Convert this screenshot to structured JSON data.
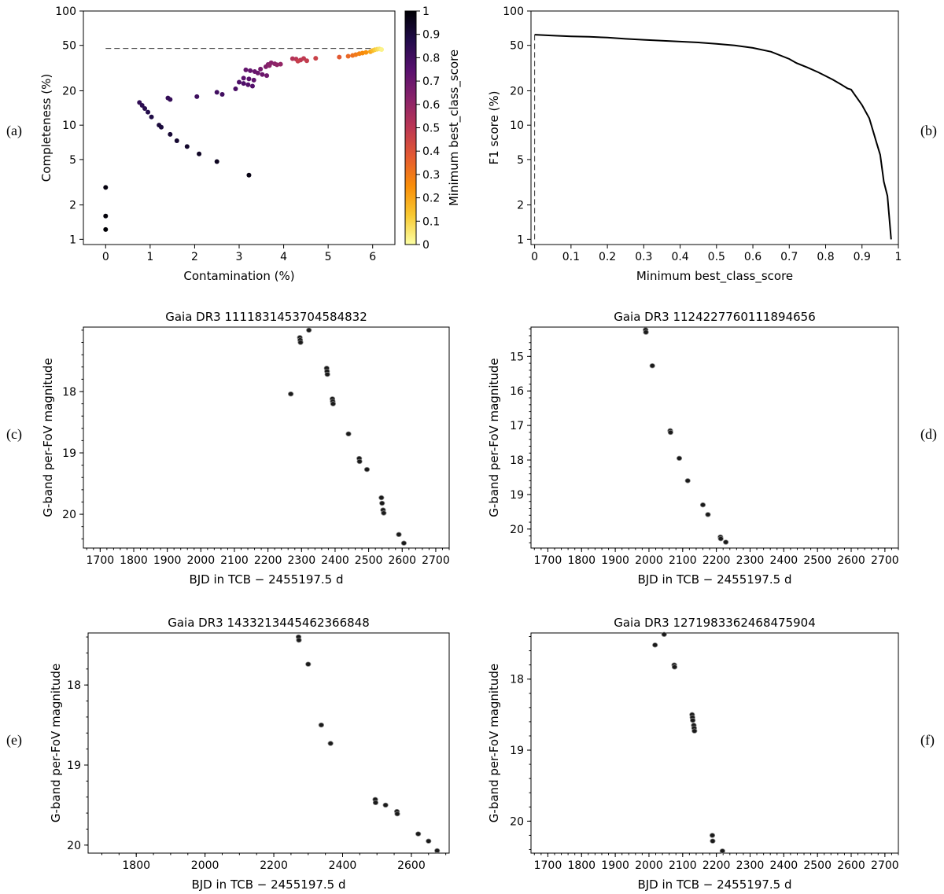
{
  "panel_labels": [
    "(a)",
    "(b)",
    "(c)",
    "(d)",
    "(e)",
    "(f)"
  ],
  "chart_data": [
    {
      "id": "a",
      "type": "scatter",
      "title": "",
      "xlabel": "Contamination (%)",
      "ylabel": "Completeness (%)",
      "yscale": "log",
      "xlim": [
        -0.5,
        6.5
      ],
      "ylim": [
        0.9,
        100
      ],
      "xticks": [
        0,
        1,
        2,
        3,
        4,
        5,
        6
      ],
      "yticks": [
        1,
        2,
        5,
        10,
        20,
        50,
        100
      ],
      "colorbar": {
        "label": "Minimum best_class_score",
        "range": [
          0,
          1
        ],
        "ticks": [
          0,
          0.1,
          0.2,
          0.3,
          0.4,
          0.5,
          0.6,
          0.7,
          0.8,
          0.9,
          1.0
        ],
        "colormap": "inferno_r",
        "colors": [
          "#fcffa4",
          "#f8c932",
          "#f98e09",
          "#e45a31",
          "#bc3754",
          "#89226a",
          "#57106e",
          "#210c4a",
          "#000004"
        ]
      },
      "reference_line": {
        "style": "dashed",
        "y": 47,
        "x_range": [
          0,
          6.2
        ]
      },
      "points": [
        {
          "x": 0,
          "y": 1.22,
          "c": 1.0
        },
        {
          "x": 0,
          "y": 1.6,
          "c": 0.99
        },
        {
          "x": 0,
          "y": 2.85,
          "c": 0.98
        },
        {
          "x": 0.76,
          "y": 15.8,
          "c": 0.84
        },
        {
          "x": 0.82,
          "y": 14.9,
          "c": 0.85
        },
        {
          "x": 0.88,
          "y": 14.0,
          "c": 0.86
        },
        {
          "x": 0.95,
          "y": 13.0,
          "c": 0.87
        },
        {
          "x": 1.03,
          "y": 11.8,
          "c": 0.88
        },
        {
          "x": 1.2,
          "y": 10.0,
          "c": 0.9
        },
        {
          "x": 1.25,
          "y": 9.6,
          "c": 0.9
        },
        {
          "x": 1.45,
          "y": 8.3,
          "c": 0.91
        },
        {
          "x": 1.6,
          "y": 7.3,
          "c": 0.92
        },
        {
          "x": 1.83,
          "y": 6.5,
          "c": 0.93
        },
        {
          "x": 2.1,
          "y": 5.6,
          "c": 0.94
        },
        {
          "x": 2.5,
          "y": 4.8,
          "c": 0.95
        },
        {
          "x": 3.22,
          "y": 3.65,
          "c": 0.97
        },
        {
          "x": 1.4,
          "y": 17.3,
          "c": 0.83
        },
        {
          "x": 1.45,
          "y": 16.8,
          "c": 0.83
        },
        {
          "x": 2.05,
          "y": 17.8,
          "c": 0.81
        },
        {
          "x": 2.5,
          "y": 19.4,
          "c": 0.8
        },
        {
          "x": 2.62,
          "y": 18.6,
          "c": 0.8
        },
        {
          "x": 2.92,
          "y": 20.8,
          "c": 0.78
        },
        {
          "x": 3.0,
          "y": 23.8,
          "c": 0.77
        },
        {
          "x": 3.1,
          "y": 23.2,
          "c": 0.77
        },
        {
          "x": 3.2,
          "y": 22.6,
          "c": 0.76
        },
        {
          "x": 3.3,
          "y": 22.0,
          "c": 0.76
        },
        {
          "x": 3.1,
          "y": 25.8,
          "c": 0.74
        },
        {
          "x": 3.22,
          "y": 25.4,
          "c": 0.74
        },
        {
          "x": 3.33,
          "y": 24.8,
          "c": 0.73
        },
        {
          "x": 3.15,
          "y": 30.5,
          "c": 0.72
        },
        {
          "x": 3.25,
          "y": 30.0,
          "c": 0.72
        },
        {
          "x": 3.35,
          "y": 29.5,
          "c": 0.71
        },
        {
          "x": 3.42,
          "y": 28.6,
          "c": 0.7
        },
        {
          "x": 3.52,
          "y": 27.8,
          "c": 0.7
        },
        {
          "x": 3.62,
          "y": 27.2,
          "c": 0.69
        },
        {
          "x": 3.48,
          "y": 31.0,
          "c": 0.68
        },
        {
          "x": 3.6,
          "y": 32.5,
          "c": 0.65
        },
        {
          "x": 3.65,
          "y": 34.0,
          "c": 0.64
        },
        {
          "x": 3.72,
          "y": 35.2,
          "c": 0.63
        },
        {
          "x": 3.8,
          "y": 34.5,
          "c": 0.62
        },
        {
          "x": 3.85,
          "y": 33.8,
          "c": 0.61
        },
        {
          "x": 3.93,
          "y": 34.2,
          "c": 0.6
        },
        {
          "x": 3.68,
          "y": 33.3,
          "c": 0.62
        },
        {
          "x": 4.2,
          "y": 38.2,
          "c": 0.52
        },
        {
          "x": 4.28,
          "y": 37.9,
          "c": 0.51
        },
        {
          "x": 4.38,
          "y": 37.2,
          "c": 0.5
        },
        {
          "x": 4.45,
          "y": 38.4,
          "c": 0.49
        },
        {
          "x": 4.52,
          "y": 36.7,
          "c": 0.48
        },
        {
          "x": 4.32,
          "y": 36.4,
          "c": 0.47
        },
        {
          "x": 4.72,
          "y": 38.5,
          "c": 0.46
        },
        {
          "x": 5.25,
          "y": 39.5,
          "c": 0.38
        },
        {
          "x": 5.45,
          "y": 40.2,
          "c": 0.34
        },
        {
          "x": 5.55,
          "y": 40.8,
          "c": 0.32
        },
        {
          "x": 5.62,
          "y": 41.5,
          "c": 0.3
        },
        {
          "x": 5.7,
          "y": 42.3,
          "c": 0.28
        },
        {
          "x": 5.77,
          "y": 42.8,
          "c": 0.26
        },
        {
          "x": 5.85,
          "y": 43.4,
          "c": 0.24
        },
        {
          "x": 5.95,
          "y": 44.0,
          "c": 0.2
        },
        {
          "x": 6.0,
          "y": 45.0,
          "c": 0.16
        },
        {
          "x": 6.05,
          "y": 45.8,
          "c": 0.12
        },
        {
          "x": 6.1,
          "y": 46.2,
          "c": 0.09
        },
        {
          "x": 6.15,
          "y": 46.5,
          "c": 0.06
        },
        {
          "x": 6.2,
          "y": 46.0,
          "c": 0.03
        }
      ]
    },
    {
      "id": "b",
      "type": "line",
      "title": "",
      "xlabel": "Minimum best_class_score",
      "ylabel": "F1 score (%)",
      "yscale": "log",
      "xlim": [
        -0.01,
        1.0
      ],
      "ylim": [
        0.9,
        100
      ],
      "xticks": [
        0,
        0.1,
        0.2,
        0.3,
        0.4,
        0.5,
        0.6,
        0.7,
        0.8,
        0.9,
        1.0
      ],
      "yticks": [
        1,
        2,
        5,
        10,
        20,
        50,
        100
      ],
      "reference_line": {
        "style": "dashed",
        "x": 0.0,
        "y_range": [
          1,
          62
        ]
      },
      "x": [
        0,
        0.05,
        0.1,
        0.15,
        0.2,
        0.25,
        0.3,
        0.35,
        0.4,
        0.45,
        0.5,
        0.55,
        0.6,
        0.65,
        0.7,
        0.72,
        0.75,
        0.78,
        0.8,
        0.82,
        0.84,
        0.86,
        0.87,
        0.88,
        0.9,
        0.92,
        0.93,
        0.94,
        0.95,
        0.96,
        0.97,
        0.98
      ],
      "y": [
        62,
        61,
        60,
        59.5,
        58.5,
        57,
        56,
        55,
        54,
        53,
        51.5,
        50,
        47.5,
        44,
        38,
        35,
        32,
        29,
        27,
        25,
        23,
        21,
        20.5,
        18.5,
        15,
        11.5,
        9,
        7,
        5.5,
        3.2,
        2.4,
        1.0
      ]
    },
    {
      "id": "c",
      "type": "scatter",
      "title": "Gaia DR3 1111831453704584832",
      "xlabel": "BJD in TCB − 2455197.5 d",
      "ylabel": "G-band per-FoV magnitude",
      "invert_y": true,
      "xlim": [
        1650,
        2740
      ],
      "ylim": [
        20.55,
        16.95
      ],
      "xticks": [
        1700,
        1800,
        1900,
        2000,
        2100,
        2200,
        2300,
        2400,
        2500,
        2600,
        2700
      ],
      "yticks": [
        18,
        19,
        20
      ],
      "points": [
        {
          "x": 2322,
          "y": 17.0
        },
        {
          "x": 2295,
          "y": 17.12
        },
        {
          "x": 2296,
          "y": 17.16
        },
        {
          "x": 2297,
          "y": 17.2
        },
        {
          "x": 2375,
          "y": 17.62
        },
        {
          "x": 2376,
          "y": 17.67
        },
        {
          "x": 2377,
          "y": 17.72
        },
        {
          "x": 2268,
          "y": 18.04
        },
        {
          "x": 2392,
          "y": 18.12
        },
        {
          "x": 2393,
          "y": 18.16
        },
        {
          "x": 2394,
          "y": 18.2
        },
        {
          "x": 2440,
          "y": 18.69
        },
        {
          "x": 2472,
          "y": 19.09
        },
        {
          "x": 2473,
          "y": 19.14
        },
        {
          "x": 2495,
          "y": 19.27
        },
        {
          "x": 2538,
          "y": 19.73
        },
        {
          "x": 2540,
          "y": 19.82
        },
        {
          "x": 2543,
          "y": 19.93
        },
        {
          "x": 2545,
          "y": 19.98
        },
        {
          "x": 2590,
          "y": 20.33
        },
        {
          "x": 2605,
          "y": 20.47
        }
      ]
    },
    {
      "id": "d",
      "type": "scatter",
      "title": "Gaia DR3 1124227760111894656",
      "xlabel": "BJD in TCB − 2455197.5 d",
      "ylabel": "G-band per-FoV magnitude",
      "invert_y": true,
      "xlim": [
        1650,
        2740
      ],
      "ylim": [
        20.55,
        14.15
      ],
      "xticks": [
        1700,
        1800,
        1900,
        2000,
        2100,
        2200,
        2300,
        2400,
        2500,
        2600,
        2700
      ],
      "yticks": [
        15,
        16,
        17,
        18,
        19,
        20
      ],
      "points": [
        {
          "x": 1990,
          "y": 14.23
        },
        {
          "x": 1991,
          "y": 14.3
        },
        {
          "x": 2010,
          "y": 15.27
        },
        {
          "x": 2063,
          "y": 17.15
        },
        {
          "x": 2064,
          "y": 17.2
        },
        {
          "x": 2090,
          "y": 17.95
        },
        {
          "x": 2115,
          "y": 18.6
        },
        {
          "x": 2160,
          "y": 19.3
        },
        {
          "x": 2175,
          "y": 19.58
        },
        {
          "x": 2212,
          "y": 20.23
        },
        {
          "x": 2213,
          "y": 20.28
        },
        {
          "x": 2228,
          "y": 20.38
        }
      ]
    },
    {
      "id": "e",
      "type": "scatter",
      "title": "Gaia DR3 1433213445462366848",
      "xlabel": "BJD in TCB − 2455197.5 d",
      "ylabel": "G-band per-FoV magnitude",
      "invert_y": true,
      "xlim": [
        1660,
        2710
      ],
      "ylim": [
        20.1,
        17.35
      ],
      "xticks": [
        1800,
        2000,
        2200,
        2400,
        2600
      ],
      "yticks": [
        18,
        19,
        20
      ],
      "points": [
        {
          "x": 2272,
          "y": 17.4
        },
        {
          "x": 2273,
          "y": 17.44
        },
        {
          "x": 2300,
          "y": 17.74
        },
        {
          "x": 2338,
          "y": 18.5
        },
        {
          "x": 2365,
          "y": 18.73
        },
        {
          "x": 2495,
          "y": 19.43
        },
        {
          "x": 2496,
          "y": 19.47
        },
        {
          "x": 2525,
          "y": 19.5
        },
        {
          "x": 2558,
          "y": 19.58
        },
        {
          "x": 2559,
          "y": 19.61
        },
        {
          "x": 2620,
          "y": 19.86
        },
        {
          "x": 2650,
          "y": 19.95
        },
        {
          "x": 2675,
          "y": 20.07
        }
      ]
    },
    {
      "id": "f",
      "type": "scatter",
      "title": "Gaia DR3 1271983362468475904",
      "xlabel": "BJD in TCB − 2455197.5 d",
      "ylabel": "G-band per-FoV magnitude",
      "invert_y": true,
      "xlim": [
        1650,
        2740
      ],
      "ylim": [
        20.45,
        17.35
      ],
      "xticks": [
        1700,
        1800,
        1900,
        2000,
        2100,
        2200,
        2300,
        2400,
        2500,
        2600,
        2700
      ],
      "yticks": [
        18,
        19,
        20
      ],
      "points": [
        {
          "x": 2045,
          "y": 17.37
        },
        {
          "x": 2018,
          "y": 17.52
        },
        {
          "x": 2075,
          "y": 17.8
        },
        {
          "x": 2076,
          "y": 17.83
        },
        {
          "x": 2128,
          "y": 18.5
        },
        {
          "x": 2129,
          "y": 18.54
        },
        {
          "x": 2130,
          "y": 18.58
        },
        {
          "x": 2133,
          "y": 18.65
        },
        {
          "x": 2134,
          "y": 18.69
        },
        {
          "x": 2135,
          "y": 18.73
        },
        {
          "x": 2188,
          "y": 20.2
        },
        {
          "x": 2189,
          "y": 20.28
        },
        {
          "x": 2218,
          "y": 20.42
        }
      ]
    }
  ]
}
